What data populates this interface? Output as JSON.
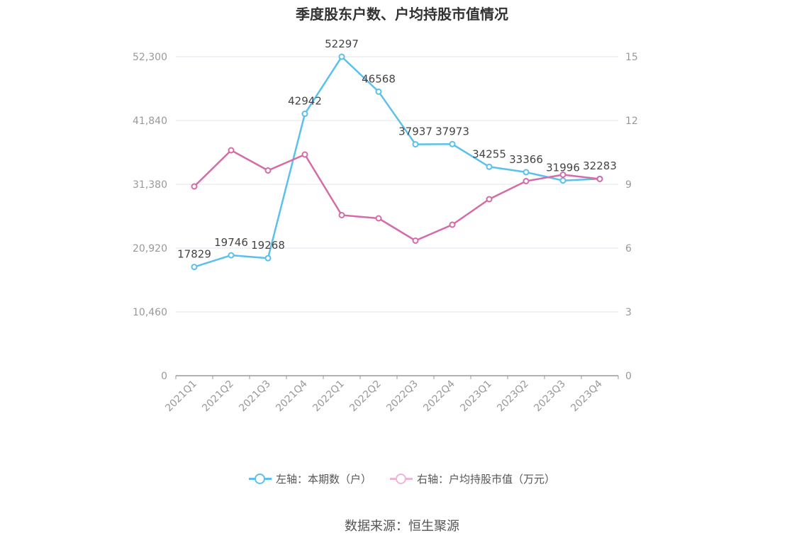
{
  "chart_data": {
    "type": "line",
    "title": "季度股东户数、户均持股市值情况",
    "categories": [
      "2021Q1",
      "2021Q2",
      "2021Q3",
      "2021Q4",
      "2022Q1",
      "2022Q2",
      "2022Q3",
      "2022Q4",
      "2023Q1",
      "2023Q2",
      "2023Q3",
      "2023Q4"
    ],
    "series": [
      {
        "name": "左轴：本期数（户）",
        "axis": "left",
        "color": "#5bc0eb",
        "values": [
          17829,
          19746,
          19268,
          42942,
          52297,
          46568,
          37937,
          37973,
          34255,
          33366,
          31996,
          32283
        ],
        "labels": [
          "17829",
          "19746",
          "19268",
          "42942",
          "52297",
          "46568",
          "37937",
          "37973",
          "34255",
          "33366",
          "31996",
          "32283"
        ]
      },
      {
        "name": "右轴：户均持股市值（万元）",
        "axis": "right",
        "color": "#d36ca8",
        "values": [
          8.9,
          10.6,
          9.65,
          10.4,
          7.55,
          7.4,
          6.35,
          7.1,
          8.3,
          9.15,
          9.45,
          9.25
        ]
      }
    ],
    "y_left": {
      "ticks": [
        "0",
        "10,460",
        "20,920",
        "31,380",
        "41,840",
        "52,300"
      ],
      "ylim": [
        0,
        52300
      ]
    },
    "y_right": {
      "ticks": [
        "0",
        "3",
        "6",
        "9",
        "12",
        "15"
      ],
      "ylim": [
        0,
        15
      ]
    },
    "grid": true,
    "legend_position": "bottom"
  },
  "source": "数据来源：恒生聚源"
}
